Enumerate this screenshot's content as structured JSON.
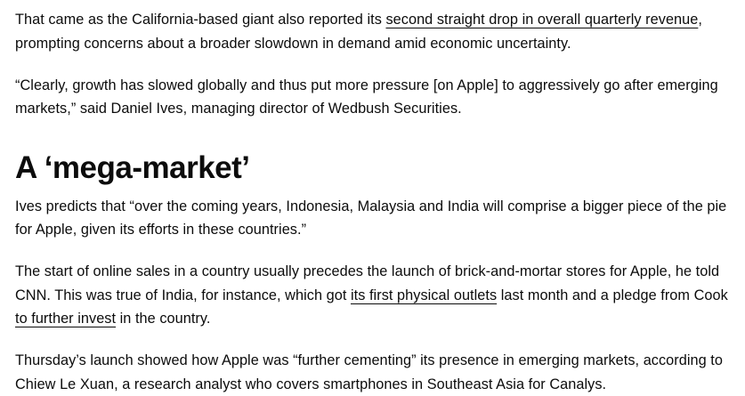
{
  "article": {
    "p1": {
      "before": "That came as the California-based giant also reported its ",
      "link": "second straight drop in overall quarterly revenue",
      "after": ", prompting concerns about a broader slowdown in demand amid economic uncertainty."
    },
    "p2": {
      "text": "“Clearly, growth has slowed globally and thus put more pressure [on Apple] to aggressively go after emerging markets,” said Daniel Ives, managing director of Wedbush Securities."
    },
    "heading": "A ‘mega-market’",
    "p3": {
      "text": "Ives predicts that “over the coming years, Indonesia, Malaysia and India will comprise a bigger piece of the pie for Apple, given its efforts in these countries.”"
    },
    "p4": {
      "before": "The start of online sales in a country usually precedes the launch of brick-and-mortar stores for Apple, he told CNN. This was true of India, for instance, which got ",
      "link1": "its first physical outlets",
      "middle": " last month and a pledge from Cook ",
      "link2": "to further invest",
      "after": " in the country."
    },
    "p5": {
      "text": "Thursday’s launch showed how Apple was “further cementing” its presence in emerging markets, according to Chiew Le Xuan, a research analyst who covers smartphones in Southeast Asia for Canalys."
    }
  }
}
